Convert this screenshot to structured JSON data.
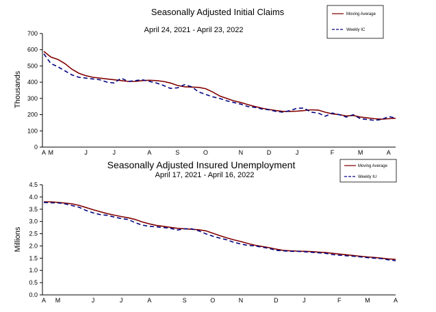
{
  "chart_data": [
    {
      "type": "line",
      "title": "Seasonally Adjusted Initial Claims",
      "subtitle": "April 24, 2021 - April 23, 2022",
      "ylabel": "Thousands",
      "ylim": [
        0,
        700
      ],
      "yticks": [
        "0",
        "100",
        "200",
        "300",
        "400",
        "500",
        "600",
        "700"
      ],
      "x_month_labels": [
        {
          "label": "A",
          "x": 0
        },
        {
          "label": "M",
          "x": 1
        },
        {
          "label": "J",
          "x": 6
        },
        {
          "label": "J",
          "x": 10
        },
        {
          "label": "A",
          "x": 15
        },
        {
          "label": "S",
          "x": 19
        },
        {
          "label": "O",
          "x": 23
        },
        {
          "label": "N",
          "x": 28
        },
        {
          "label": "D",
          "x": 32
        },
        {
          "label": "J",
          "x": 36
        },
        {
          "label": "F",
          "x": 41
        },
        {
          "label": "M",
          "x": 45
        },
        {
          "label": "A",
          "x": 49
        }
      ],
      "grid": false,
      "legend": "top-right",
      "series": [
        {
          "name": "Moving Average",
          "color": "#800000",
          "style": "solid",
          "values": [
            590,
            555,
            540,
            515,
            480,
            455,
            440,
            430,
            425,
            420,
            415,
            410,
            405,
            405,
            410,
            412,
            410,
            405,
            395,
            380,
            372,
            370,
            368,
            360,
            340,
            315,
            300,
            285,
            275,
            262,
            250,
            240,
            232,
            225,
            220,
            220,
            222,
            225,
            230,
            228,
            215,
            205,
            200,
            192,
            195,
            185,
            180,
            175,
            172,
            175,
            178
          ]
        },
        {
          "name": "Weekly IC",
          "color": "#000080",
          "style": "dashed",
          "values": [
            575,
            515,
            495,
            470,
            445,
            430,
            425,
            420,
            415,
            400,
            395,
            425,
            405,
            410,
            415,
            405,
            395,
            380,
            362,
            365,
            385,
            372,
            340,
            325,
            310,
            300,
            285,
            275,
            265,
            250,
            245,
            235,
            230,
            220,
            215,
            225,
            240,
            240,
            215,
            210,
            190,
            210,
            200,
            185,
            200,
            175,
            170,
            165,
            170,
            188,
            180
          ]
        }
      ]
    },
    {
      "type": "line",
      "title": "Seasonally Adjusted Insured Unemployment",
      "subtitle": "April 17, 2021 - April 16, 2022",
      "ylabel": "Millions",
      "ylim": [
        0,
        4.5
      ],
      "yticks": [
        "0.0",
        "0.5",
        "1.0",
        "1.5",
        "2.0",
        "2.5",
        "3.0",
        "3.5",
        "4.0",
        "4.5"
      ],
      "x_month_labels": [
        {
          "label": "A",
          "x": 0
        },
        {
          "label": "M",
          "x": 2
        },
        {
          "label": "J",
          "x": 7
        },
        {
          "label": "J",
          "x": 11
        },
        {
          "label": "A",
          "x": 15
        },
        {
          "label": "S",
          "x": 20
        },
        {
          "label": "O",
          "x": 24
        },
        {
          "label": "N",
          "x": 28
        },
        {
          "label": "D",
          "x": 33
        },
        {
          "label": "J",
          "x": 37
        },
        {
          "label": "F",
          "x": 42
        },
        {
          "label": "M",
          "x": 46
        },
        {
          "label": "A",
          "x": 50
        }
      ],
      "grid": false,
      "legend": "top-right",
      "series": [
        {
          "name": "Moving Average",
          "color": "#800000",
          "style": "solid",
          "values": [
            3.8,
            3.8,
            3.78,
            3.75,
            3.72,
            3.66,
            3.57,
            3.48,
            3.4,
            3.32,
            3.26,
            3.2,
            3.15,
            3.08,
            2.98,
            2.9,
            2.84,
            2.8,
            2.76,
            2.72,
            2.7,
            2.68,
            2.66,
            2.62,
            2.52,
            2.42,
            2.33,
            2.25,
            2.18,
            2.1,
            2.03,
            1.98,
            1.93,
            1.87,
            1.82,
            1.8,
            1.79,
            1.78,
            1.77,
            1.75,
            1.73,
            1.7,
            1.67,
            1.64,
            1.61,
            1.58,
            1.55,
            1.53,
            1.5,
            1.47,
            1.45
          ]
        },
        {
          "name": "Weekly IU",
          "color": "#000080",
          "style": "dashed",
          "values": [
            3.78,
            3.76,
            3.76,
            3.72,
            3.65,
            3.58,
            3.45,
            3.35,
            3.28,
            3.25,
            3.18,
            3.12,
            3.08,
            2.95,
            2.85,
            2.8,
            2.78,
            2.75,
            2.72,
            2.65,
            2.7,
            2.7,
            2.62,
            2.5,
            2.4,
            2.32,
            2.25,
            2.15,
            2.08,
            2.02,
            2.0,
            1.95,
            1.9,
            1.82,
            1.8,
            1.78,
            1.78,
            1.76,
            1.74,
            1.72,
            1.7,
            1.65,
            1.62,
            1.6,
            1.58,
            1.55,
            1.52,
            1.5,
            1.48,
            1.43,
            1.4
          ]
        }
      ]
    }
  ]
}
